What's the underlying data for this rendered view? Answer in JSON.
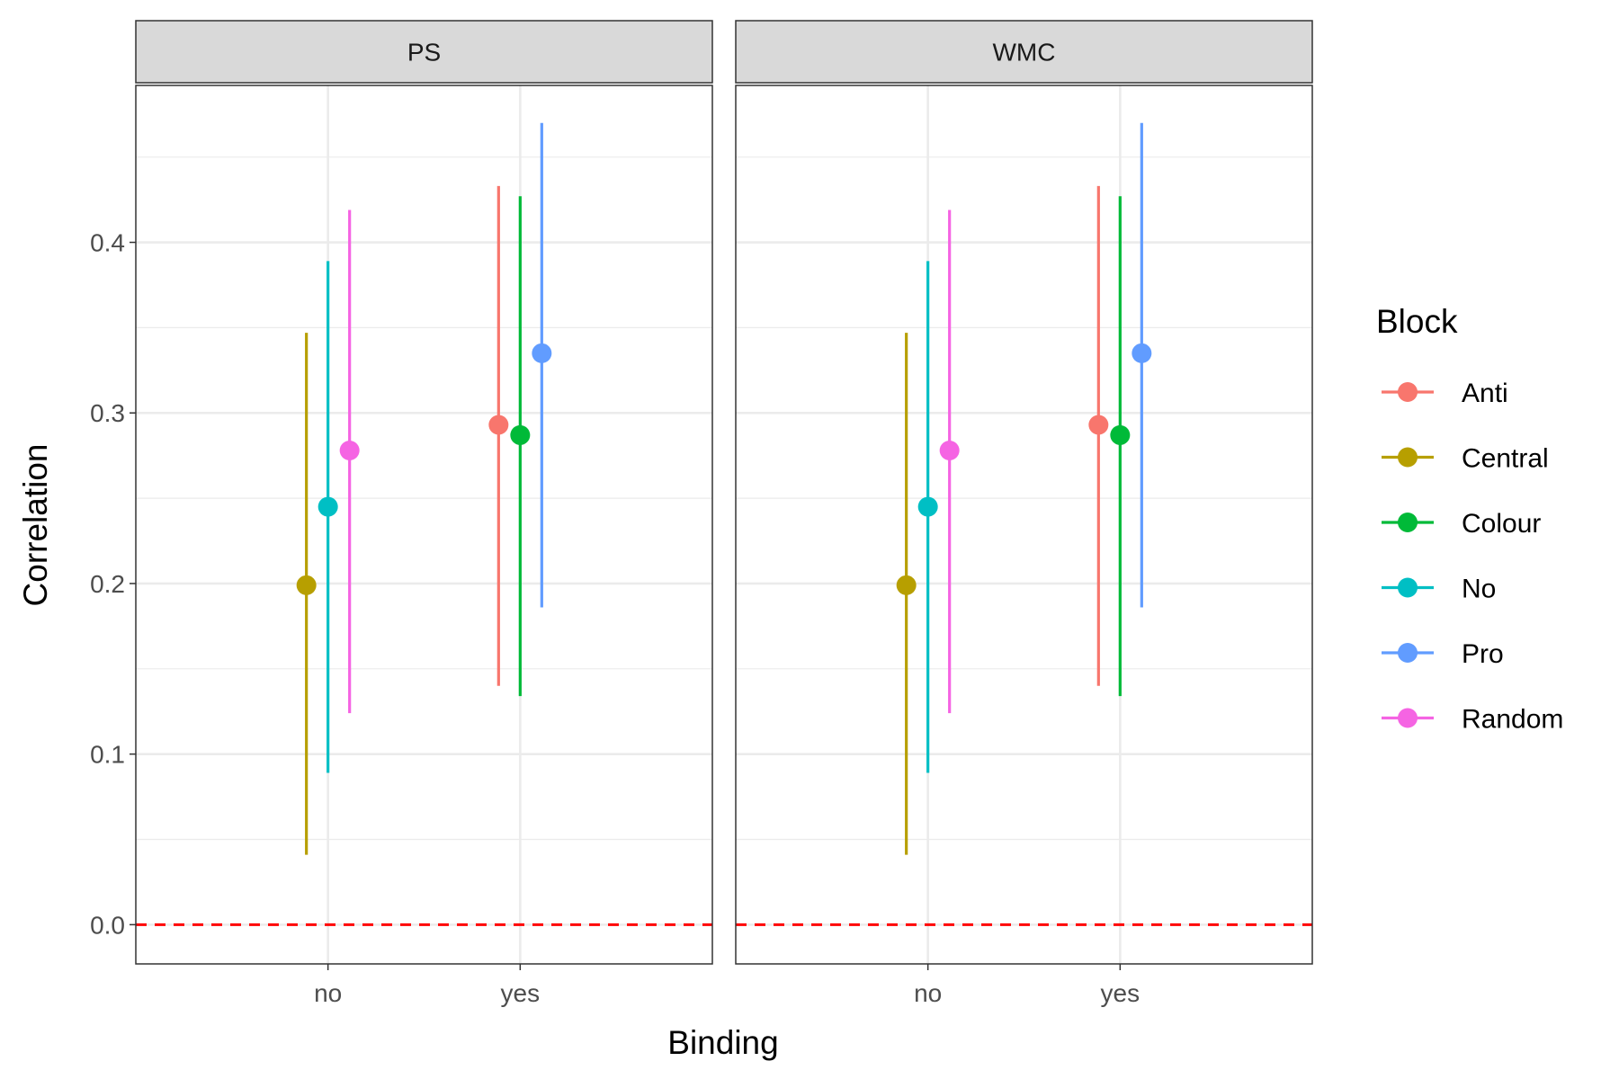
{
  "chart_data": {
    "type": "scatter",
    "xlabel": "Binding",
    "ylabel": "Correlation",
    "categories": [
      "no",
      "yes"
    ],
    "ylim": [
      -0.023,
      0.492
    ],
    "yticks": [
      0.0,
      0.1,
      0.2,
      0.3,
      0.4
    ],
    "ytick_labels": [
      "0.0",
      "0.1",
      "0.2",
      "0.3",
      "0.4"
    ],
    "reference_line": {
      "y": 0.0,
      "style": "dashed",
      "color": "#FF0000"
    },
    "grid": true,
    "legend": {
      "title": "Block",
      "position": "right"
    },
    "series_meta": [
      {
        "name": "Anti",
        "color": "#F8766D"
      },
      {
        "name": "Central",
        "color": "#B79F00"
      },
      {
        "name": "Colour",
        "color": "#00BA38"
      },
      {
        "name": "No",
        "color": "#00BFC4"
      },
      {
        "name": "Pro",
        "color": "#619CFF"
      },
      {
        "name": "Random",
        "color": "#F564E3"
      }
    ],
    "facets": [
      {
        "label": "PS",
        "points": [
          {
            "series": "Central",
            "x": "no",
            "y": 0.199,
            "lower": 0.041,
            "upper": 0.347
          },
          {
            "series": "No",
            "x": "no",
            "y": 0.245,
            "lower": 0.089,
            "upper": 0.389
          },
          {
            "series": "Random",
            "x": "no",
            "y": 0.278,
            "lower": 0.124,
            "upper": 0.419
          },
          {
            "series": "Anti",
            "x": "yes",
            "y": 0.293,
            "lower": 0.14,
            "upper": 0.433
          },
          {
            "series": "Colour",
            "x": "yes",
            "y": 0.287,
            "lower": 0.134,
            "upper": 0.427
          },
          {
            "series": "Pro",
            "x": "yes",
            "y": 0.335,
            "lower": 0.186,
            "upper": 0.47
          }
        ]
      },
      {
        "label": "WMC",
        "points": [
          {
            "series": "Central",
            "x": "no",
            "y": 0.199,
            "lower": 0.041,
            "upper": 0.347
          },
          {
            "series": "No",
            "x": "no",
            "y": 0.245,
            "lower": 0.089,
            "upper": 0.389
          },
          {
            "series": "Random",
            "x": "no",
            "y": 0.278,
            "lower": 0.124,
            "upper": 0.419
          },
          {
            "series": "Anti",
            "x": "yes",
            "y": 0.293,
            "lower": 0.14,
            "upper": 0.433
          },
          {
            "series": "Colour",
            "x": "yes",
            "y": 0.287,
            "lower": 0.134,
            "upper": 0.427
          },
          {
            "series": "Pro",
            "x": "yes",
            "y": 0.335,
            "lower": 0.186,
            "upper": 0.47
          }
        ]
      }
    ]
  }
}
